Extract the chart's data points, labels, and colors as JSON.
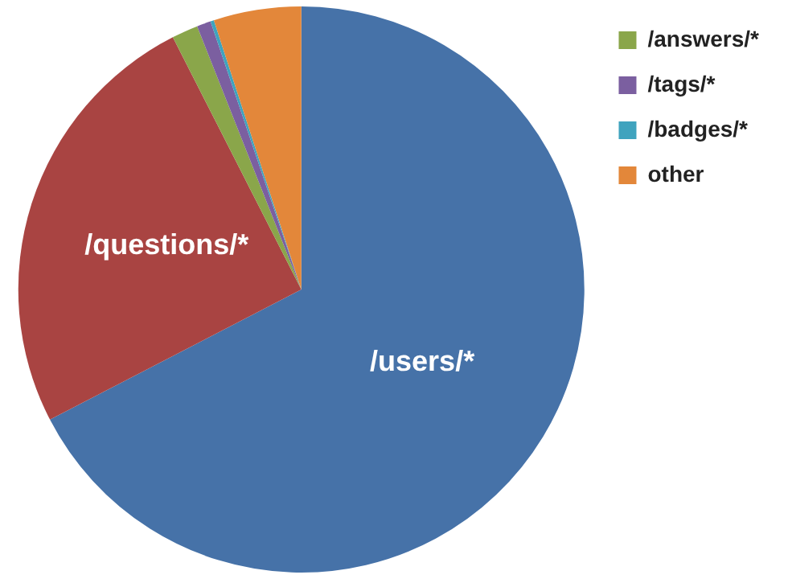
{
  "chart_data": {
    "type": "pie",
    "categories": [
      "/users/*",
      "/questions/*",
      "/answers/*",
      "/tags/*",
      "/badges/*",
      "other"
    ],
    "values": [
      67.4,
      25.1,
      1.5,
      0.8,
      0.2,
      5.0
    ],
    "colors": [
      "#4672a8",
      "#a94442",
      "#8aa64a",
      "#7b5fa0",
      "#3fa3be",
      "#e3873a"
    ],
    "legend": "top right"
  }
}
